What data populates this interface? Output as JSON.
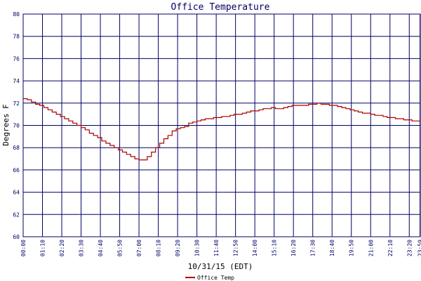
{
  "chart_data": {
    "type": "line",
    "title": "Office Temperature",
    "xlabel": "10/31/15 (EDT)",
    "ylabel": "Degrees F",
    "ylim": [
      60,
      80
    ],
    "yticks": [
      "60",
      "62",
      "64",
      "66",
      "68",
      "70",
      "72",
      "74",
      "76",
      "78",
      "80"
    ],
    "xlim_hours": [
      0,
      24
    ],
    "xticks": [
      "00:00",
      "01:10",
      "02:20",
      "03:30",
      "04:40",
      "05:50",
      "07:00",
      "08:10",
      "09:20",
      "10:30",
      "11:40",
      "12:50",
      "14:00",
      "15:10",
      "16:20",
      "17:30",
      "18:40",
      "19:50",
      "21:00",
      "22:10",
      "23:20",
      "23:59"
    ],
    "grid": true,
    "legend_position": "bottom-left",
    "colors": {
      "series": "#aa0000",
      "grid": "#000066",
      "frame": "#000066",
      "title": "#000066",
      "tick_label": "#000066"
    },
    "series": [
      {
        "name": "Office Temp",
        "x": [
          0,
          0.25,
          0.5,
          0.75,
          1,
          1.25,
          1.5,
          1.75,
          2,
          2.25,
          2.5,
          2.75,
          3,
          3.25,
          3.5,
          3.75,
          4,
          4.25,
          4.5,
          4.75,
          5,
          5.25,
          5.5,
          5.75,
          6,
          6.25,
          6.5,
          6.75,
          7,
          7.25,
          7.5,
          7.75,
          8,
          8.25,
          8.5,
          8.75,
          9,
          9.25,
          9.5,
          9.75,
          10,
          10.25,
          10.5,
          10.75,
          11,
          11.25,
          11.5,
          11.75,
          12,
          12.25,
          12.5,
          12.75,
          13,
          13.25,
          13.5,
          13.75,
          14,
          14.25,
          14.5,
          14.75,
          15,
          15.25,
          15.5,
          15.75,
          16,
          16.25,
          16.5,
          16.75,
          17,
          17.25,
          17.5,
          17.75,
          18,
          18.25,
          18.5,
          18.75,
          19,
          19.25,
          19.5,
          19.75,
          20,
          20.25,
          20.5,
          20.75,
          21,
          21.25,
          21.5,
          21.75,
          22,
          22.25,
          22.5,
          22.75,
          23,
          23.25,
          23.5,
          23.75,
          23.98
        ],
        "y": [
          72.4,
          72.3,
          72.1,
          71.9,
          71.8,
          71.6,
          71.4,
          71.2,
          71.0,
          70.8,
          70.6,
          70.4,
          70.2,
          70.0,
          69.8,
          69.6,
          69.3,
          69.1,
          68.9,
          68.6,
          68.4,
          68.2,
          68.0,
          67.8,
          67.6,
          67.4,
          67.2,
          67.0,
          66.9,
          66.9,
          67.2,
          67.6,
          68.0,
          68.4,
          68.8,
          69.1,
          69.5,
          69.7,
          69.8,
          69.9,
          70.2,
          70.3,
          70.4,
          70.5,
          70.6,
          70.6,
          70.7,
          70.7,
          70.8,
          70.8,
          70.9,
          71.0,
          71.0,
          71.1,
          71.2,
          71.3,
          71.3,
          71.4,
          71.5,
          71.5,
          71.6,
          71.5,
          71.5,
          71.6,
          71.7,
          71.8,
          71.8,
          71.8,
          71.8,
          71.9,
          71.9,
          72.0,
          71.9,
          71.9,
          71.8,
          71.8,
          71.7,
          71.6,
          71.5,
          71.4,
          71.3,
          71.2,
          71.1,
          71.1,
          71.0,
          70.9,
          70.9,
          70.8,
          70.7,
          70.7,
          70.6,
          70.6,
          70.5,
          70.5,
          70.4,
          70.4,
          70.4
        ]
      }
    ]
  }
}
